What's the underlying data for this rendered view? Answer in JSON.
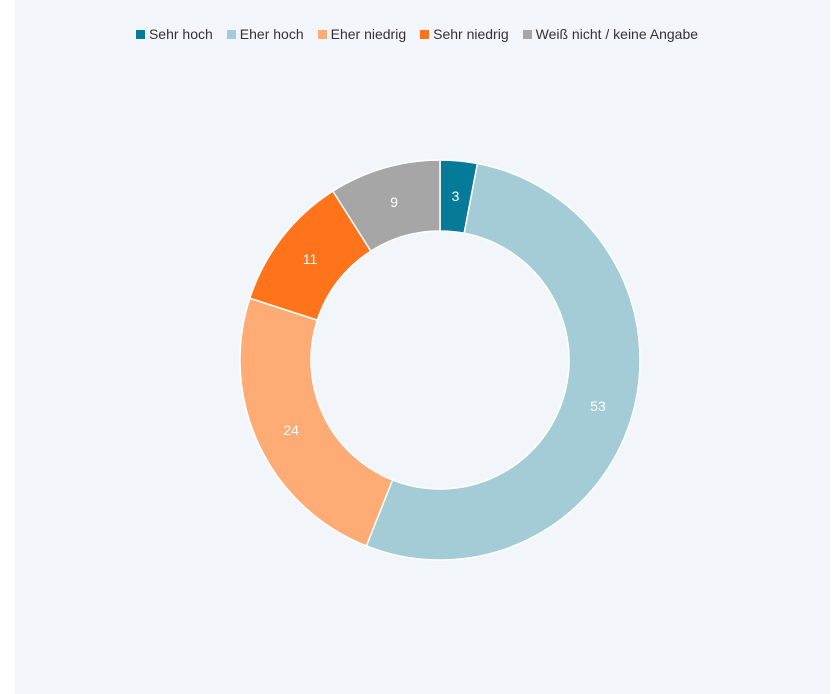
{
  "chart_data": {
    "type": "pie",
    "donut": true,
    "title": "",
    "legend_position": "top",
    "slices": [
      {
        "label": "Sehr hoch",
        "value": 3,
        "color": "#057a99"
      },
      {
        "label": "Eher hoch",
        "value": 53,
        "color": "#a3ccd6"
      },
      {
        "label": "Eher niedrig",
        "value": 24,
        "color": "#ffab75"
      },
      {
        "label": "Sehr niedrig",
        "value": 11,
        "color": "#ff731a"
      },
      {
        "label": "Weiß nicht / keine Angabe",
        "value": 9,
        "color": "#a6a6a6"
      }
    ]
  }
}
